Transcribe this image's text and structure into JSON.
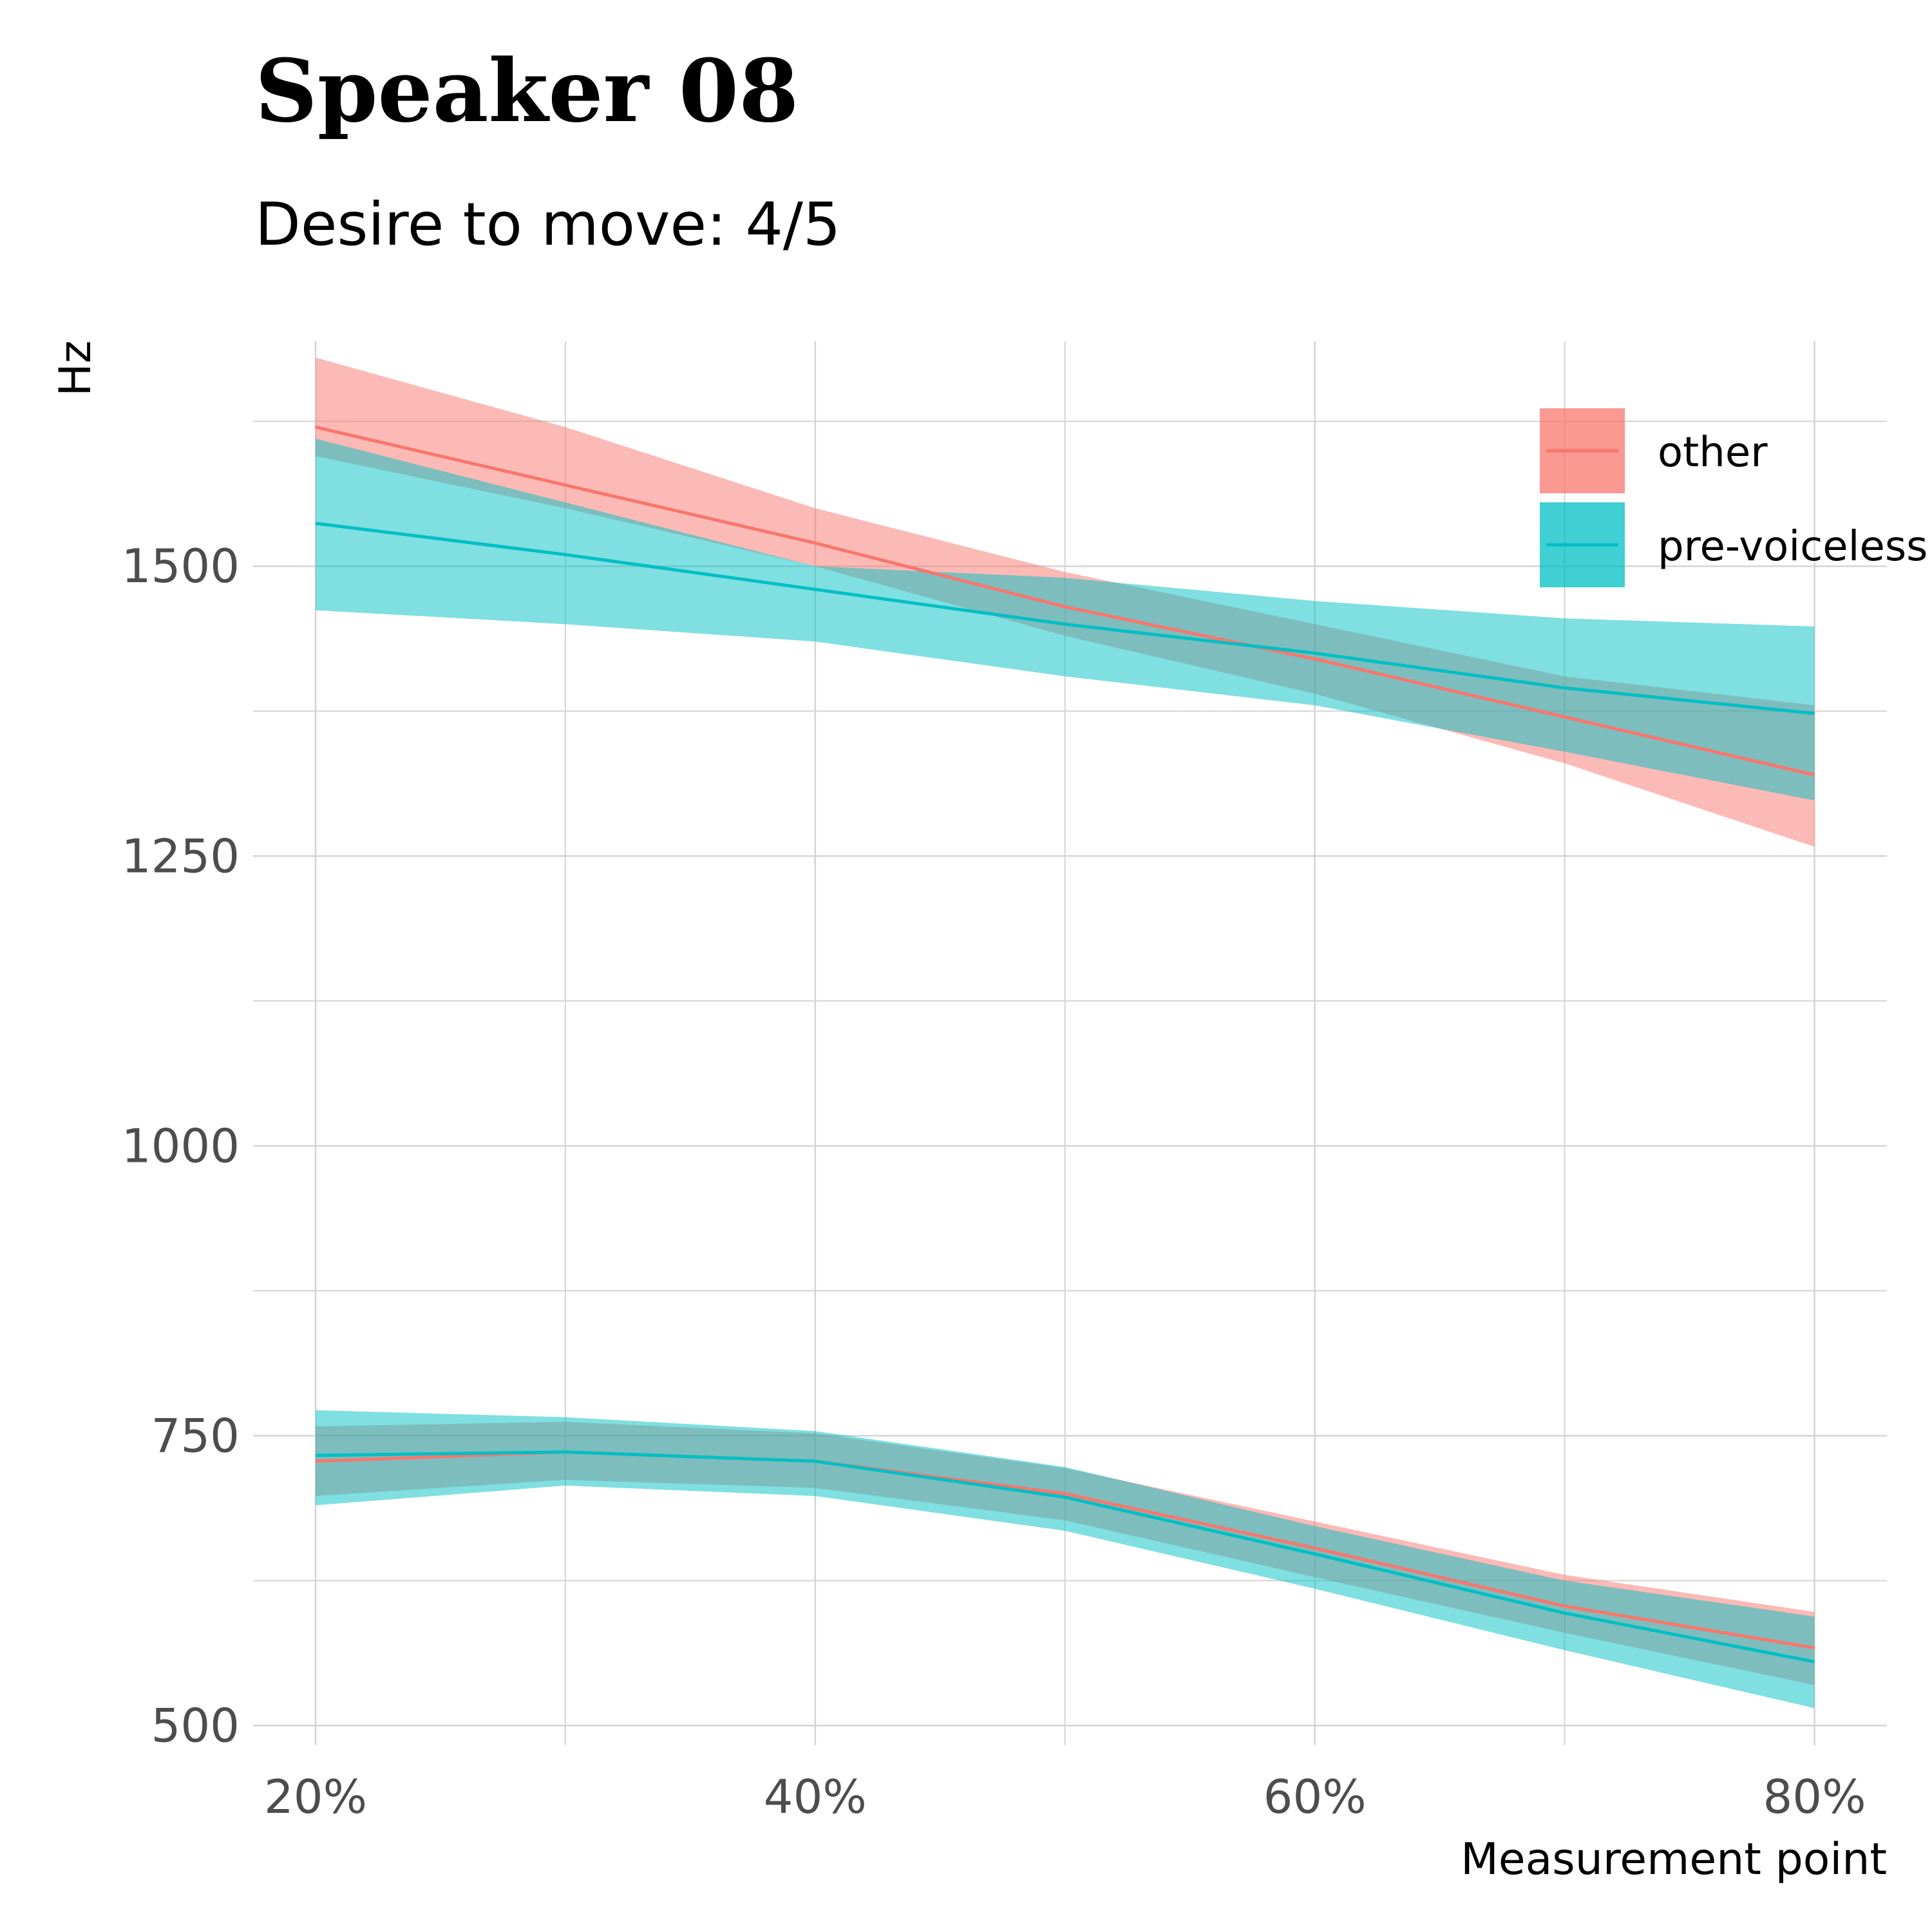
{
  "chart_data": {
    "type": "line",
    "title": "Speaker 08",
    "subtitle": "Desire to move: 4/5",
    "xlabel": "Measurement point",
    "ylabel": "Hz",
    "x": [
      20,
      30,
      40,
      50,
      60,
      70,
      80
    ],
    "x_tick_values": [
      20,
      40,
      60,
      80
    ],
    "x_tick_labels": [
      "20%",
      "40%",
      "60%",
      "80%"
    ],
    "xlim": [
      17.5,
      82.9
    ],
    "y_tick_values": [
      500,
      750,
      1000,
      1250,
      1500
    ],
    "y_tick_labels": [
      "500",
      "750",
      "1000",
      "1250",
      "1500"
    ],
    "ylim": [
      483,
      1694
    ],
    "grid": true,
    "legend_position": "top-right",
    "series": [
      {
        "name": "other",
        "color": "#F8766D",
        "bands": [
          {
            "fit": [
              1620,
              1570,
              1520,
              1465,
              1420,
              1370,
              1320
            ],
            "lower": [
              1595,
              1550,
              1500,
              1440,
              1390,
              1330,
              1258
            ],
            "upper": [
              1680,
              1620,
              1550,
              1495,
              1450,
              1405,
              1380
            ]
          },
          {
            "fit": [
              728,
              736,
              728,
              700,
              653,
              603,
              567
            ],
            "lower": [
              698,
              712,
              705,
              677,
              628,
              580,
              535
            ],
            "upper": [
              758,
              762,
              752,
              722,
              676,
              630,
              598
            ]
          }
        ]
      },
      {
        "name": "pre-voiceless",
        "color": "#00BFC4",
        "bands": [
          {
            "fit": [
              1537,
              1510,
              1480,
              1450,
              1425,
              1395,
              1373
            ],
            "lower": [
              1462,
              1450,
              1435,
              1405,
              1380,
              1340,
              1298
            ],
            "upper": [
              1610,
              1555,
              1500,
              1490,
              1470,
              1455,
              1448
            ]
          },
          {
            "fit": [
              733,
              736,
              728,
              697,
              648,
              597,
              555
            ],
            "lower": [
              690,
              707,
              698,
              668,
              618,
              565,
              515
            ],
            "upper": [
              772,
              766,
              754,
              723,
              672,
              625,
              594
            ]
          }
        ]
      }
    ]
  }
}
